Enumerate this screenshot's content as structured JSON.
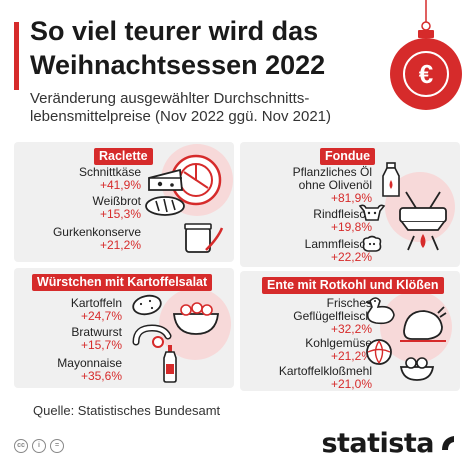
{
  "header": {
    "title_line1": "So viel teurer wird das",
    "title_line2": "Weihnachtsessen 2022",
    "subtitle_line1": "Veränderung ausgewählter Durchschnitts-",
    "subtitle_line2": "lebensmittelpreise (Nov 2022 ggü. Nov 2021)"
  },
  "ornament": {
    "symbol": "€"
  },
  "panels": {
    "raclette": {
      "title": "Raclette",
      "items": [
        {
          "name": "Schnittkäse",
          "pct": "+41,9%"
        },
        {
          "name": "Weißbrot",
          "pct": "+15,3%"
        },
        {
          "name": "Gurkenkonserve",
          "pct": "+21,2%"
        }
      ]
    },
    "fondue": {
      "title": "Fondue",
      "items": [
        {
          "name_line1": "Pflanzliches Öl",
          "name_line2": "ohne Olivenöl",
          "pct": "+81,9%"
        },
        {
          "name": "Rindfleisch",
          "pct": "+19,8%"
        },
        {
          "name": "Lammfleisch",
          "pct": "+22,2%"
        }
      ]
    },
    "wurst": {
      "title": "Würstchen mit Kartoffelsalat",
      "items": [
        {
          "name": "Kartoffeln",
          "pct": "+24,7%"
        },
        {
          "name": "Bratwurst",
          "pct": "+15,7%"
        },
        {
          "name": "Mayonnaise",
          "pct": "+35,6%"
        }
      ]
    },
    "ente": {
      "title": "Ente mit Rotkohl und Klößen",
      "items": [
        {
          "name_line1": "Frisches",
          "name_line2": "Geflügelfleisch",
          "pct": "+32,2%"
        },
        {
          "name": "Kohlgemüse",
          "pct": "+21,2%"
        },
        {
          "name": "Kartoffelkloßmehl",
          "pct": "+21,0%"
        }
      ]
    }
  },
  "footer": {
    "source": "Quelle: Statistisches Bundesamt",
    "cc_labels": [
      "cc",
      "i",
      "="
    ],
    "logo": "statista"
  },
  "colors": {
    "accent": "#d62b2b",
    "panel_bg": "#f0f0f0",
    "circle_bg": "#f7d9d9",
    "text": "#1f1f1f"
  }
}
